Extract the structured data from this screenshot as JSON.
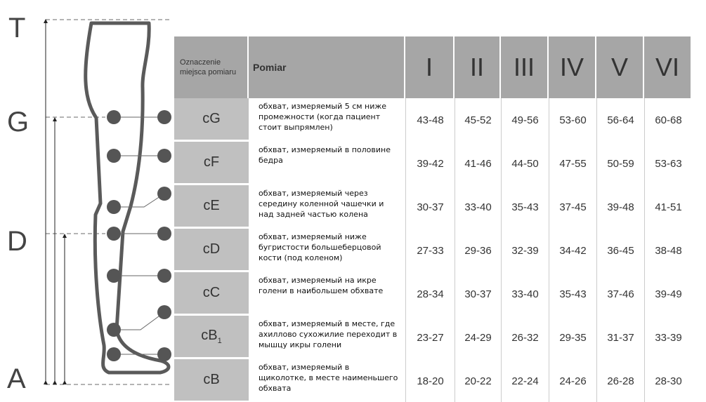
{
  "letters": [
    "T",
    "G",
    "D",
    "A"
  ],
  "header": {
    "designation": "Oznaczenie miejsca pomiaru",
    "measurement": "Pomiar",
    "sizes": [
      "I",
      "II",
      "III",
      "IV",
      "V",
      "VI"
    ]
  },
  "rows": [
    {
      "code": "cG",
      "desc": "обхват, измеряемый 5 см ниже промежности (когда пациент стоит выпрямлен)",
      "values": [
        "43-48",
        "45-52",
        "49-56",
        "53-60",
        "56-64",
        "60-68"
      ]
    },
    {
      "code": "cF",
      "desc": "обхват, измеряемый в половине бедра",
      "values": [
        "39-42",
        "41-46",
        "44-50",
        "47-55",
        "50-59",
        "53-63"
      ]
    },
    {
      "code": "cE",
      "desc": "обхват, измеряемый через середину коленной чашечки и над задней частью колена",
      "values": [
        "30-37",
        "33-40",
        "35-43",
        "37-45",
        "39-48",
        "41-51"
      ]
    },
    {
      "code": "cD",
      "desc": "обхват, измеряемый ниже бугристости большеберцовой кости (под коленом)",
      "values": [
        "27-33",
        "29-36",
        "32-39",
        "34-42",
        "36-45",
        "38-48"
      ]
    },
    {
      "code": "cC",
      "desc": "обхват, измеряемый на икре голени в наибольшем обхвате",
      "values": [
        "28-34",
        "30-37",
        "33-40",
        "35-43",
        "37-46",
        "39-49"
      ]
    },
    {
      "code": "cB",
      "code_sub": "1",
      "desc": "обхват,  измеряемый в месте, где ахиллово сухожилие переходит в мышцу икры голени",
      "values": [
        "23-27",
        "24-29",
        "26-32",
        "29-35",
        "31-37",
        "33-39"
      ]
    },
    {
      "code": "cB",
      "desc": "обхват, измеряемый в щиколотке, в месте наименьшего обхвата",
      "values": [
        "18-20",
        "20-22",
        "22-24",
        "24-26",
        "26-28",
        "28-30"
      ]
    }
  ],
  "colors": {
    "header": "#a6a6a6",
    "code_cell": "#c0c0c0",
    "outline": "#555555"
  }
}
